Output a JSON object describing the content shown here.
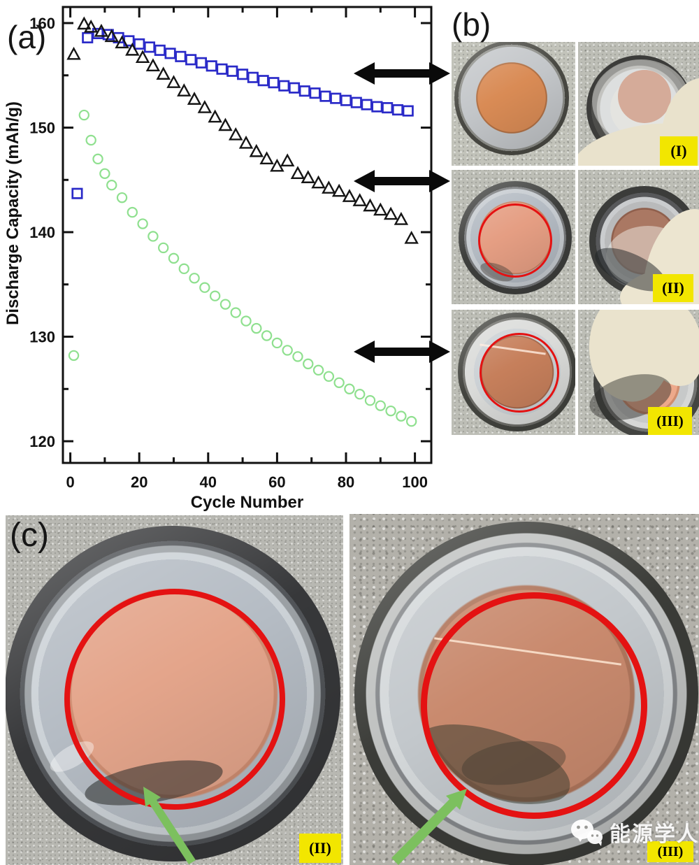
{
  "panels": {
    "a_label": "(a)",
    "b_label": "(b)",
    "c_label": "(c)"
  },
  "chart_data": {
    "type": "scatter",
    "title": "",
    "xlabel": "Cycle Number",
    "ylabel": "Discharge Capacity (mAh/g)",
    "xlim": [
      -2,
      105
    ],
    "ylim": [
      118,
      161.5
    ],
    "x_ticks": [
      0,
      20,
      40,
      60,
      80,
      100
    ],
    "y_ticks": [
      120,
      130,
      140,
      150,
      160
    ],
    "x_minor_ticks": [
      10,
      30,
      50,
      70,
      90
    ],
    "y_minor_ticks": [
      125,
      135,
      145,
      155
    ],
    "grid": false,
    "legend": null,
    "series": [
      {
        "name": "cell-I-blue-squares",
        "marker": "square",
        "color": "#2a2ac8",
        "points": [
          [
            2,
            143.7
          ],
          [
            5,
            158.6
          ],
          [
            8,
            159.0
          ],
          [
            11,
            158.9
          ],
          [
            14,
            158.6
          ],
          [
            17,
            158.3
          ],
          [
            20,
            158.0
          ],
          [
            23,
            157.7
          ],
          [
            26,
            157.4
          ],
          [
            29,
            157.1
          ],
          [
            32,
            156.8
          ],
          [
            35,
            156.5
          ],
          [
            38,
            156.2
          ],
          [
            41,
            155.9
          ],
          [
            44,
            155.6
          ],
          [
            47,
            155.4
          ],
          [
            50,
            155.1
          ],
          [
            53,
            154.8
          ],
          [
            56,
            154.5
          ],
          [
            59,
            154.3
          ],
          [
            62,
            154.0
          ],
          [
            65,
            153.8
          ],
          [
            68,
            153.5
          ],
          [
            71,
            153.3
          ],
          [
            74,
            153.0
          ],
          [
            77,
            152.8
          ],
          [
            80,
            152.6
          ],
          [
            83,
            152.4
          ],
          [
            86,
            152.2
          ],
          [
            89,
            152.0
          ],
          [
            92,
            151.9
          ],
          [
            95,
            151.7
          ],
          [
            98,
            151.6
          ]
        ]
      },
      {
        "name": "cell-II-black-triangles",
        "marker": "triangle",
        "color": "#151515",
        "points": [
          [
            1,
            157.0
          ],
          [
            4,
            159.9
          ],
          [
            6,
            159.6
          ],
          [
            9,
            159.2
          ],
          [
            12,
            158.7
          ],
          [
            15,
            158.1
          ],
          [
            18,
            157.4
          ],
          [
            21,
            156.7
          ],
          [
            24,
            155.9
          ],
          [
            27,
            155.1
          ],
          [
            30,
            154.3
          ],
          [
            33,
            153.5
          ],
          [
            36,
            152.7
          ],
          [
            39,
            151.9
          ],
          [
            42,
            151.0
          ],
          [
            45,
            150.2
          ],
          [
            48,
            149.3
          ],
          [
            51,
            148.5
          ],
          [
            54,
            147.7
          ],
          [
            57,
            147.0
          ],
          [
            60,
            146.3
          ],
          [
            63,
            146.8
          ],
          [
            66,
            145.6
          ],
          [
            69,
            145.2
          ],
          [
            72,
            144.7
          ],
          [
            75,
            144.2
          ],
          [
            78,
            143.9
          ],
          [
            81,
            143.4
          ],
          [
            84,
            143.0
          ],
          [
            87,
            142.5
          ],
          [
            90,
            142.1
          ],
          [
            93,
            141.7
          ],
          [
            96,
            141.2
          ],
          [
            99,
            139.4
          ]
        ]
      },
      {
        "name": "cell-III-green-circles",
        "marker": "circle",
        "color": "#8fe08f",
        "points": [
          [
            1,
            128.2
          ],
          [
            4,
            151.2
          ],
          [
            6,
            148.8
          ],
          [
            8,
            147.0
          ],
          [
            10,
            145.6
          ],
          [
            12,
            144.5
          ],
          [
            15,
            143.3
          ],
          [
            18,
            141.9
          ],
          [
            21,
            140.8
          ],
          [
            24,
            139.6
          ],
          [
            27,
            138.5
          ],
          [
            30,
            137.5
          ],
          [
            33,
            136.5
          ],
          [
            36,
            135.6
          ],
          [
            39,
            134.7
          ],
          [
            42,
            133.9
          ],
          [
            45,
            133.1
          ],
          [
            48,
            132.3
          ],
          [
            51,
            131.5
          ],
          [
            54,
            130.8
          ],
          [
            57,
            130.1
          ],
          [
            60,
            129.4
          ],
          [
            63,
            128.7
          ],
          [
            66,
            128.1
          ],
          [
            69,
            127.4
          ],
          [
            72,
            126.8
          ],
          [
            75,
            126.2
          ],
          [
            78,
            125.6
          ],
          [
            81,
            125.0
          ],
          [
            84,
            124.5
          ],
          [
            87,
            123.9
          ],
          [
            90,
            123.4
          ],
          [
            93,
            122.9
          ],
          [
            96,
            122.4
          ],
          [
            99,
            121.9
          ]
        ]
      }
    ],
    "annotations": {
      "double_arrows_at_y_values": [
        155.2,
        144.6,
        128.6
      ],
      "double_arrows_link_to": [
        "(I)",
        "(II)",
        "(III)"
      ]
    }
  },
  "badges": {
    "b_row1": "(I)",
    "b_row2": "(II)",
    "b_row3": "(III)",
    "c_left": "(II)",
    "c_right": "(III)"
  },
  "watermark": {
    "icon": "wechat-icon",
    "text": "能源学人"
  },
  "icons": {
    "link_arrow": "double-arrow-icon",
    "annotation_arrow": "green-arrow-icon",
    "watermark_icon": "wechat-icon"
  },
  "colors": {
    "squares": "#2a2ac8",
    "triangles": "#151515",
    "circles": "#8fe08f",
    "red_circle_annotation": "#e41212",
    "badge_background": "#f2e600",
    "green_arrow": "#7cc05e",
    "black_arrow": "#0a0a0a"
  }
}
